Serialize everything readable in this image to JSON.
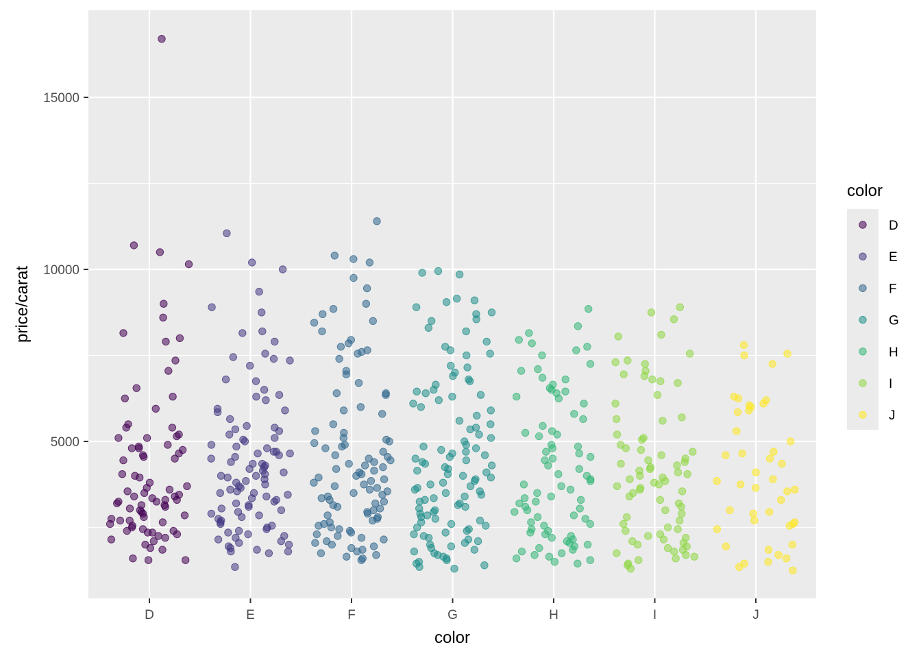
{
  "chart_data": {
    "type": "scatter",
    "subtype": "jitter",
    "title": "",
    "xlabel": "color",
    "ylabel": "price/carat",
    "categories": [
      "D",
      "E",
      "F",
      "G",
      "H",
      "I",
      "J"
    ],
    "y_ticks": [
      5000,
      10000,
      15000
    ],
    "y_tick_labels": [
      "5000",
      "10000",
      "15000"
    ],
    "ylim": [
      700,
      17300
    ],
    "grid": true,
    "legend": {
      "title": "color",
      "position": "right",
      "entries": [
        "D",
        "E",
        "F",
        "G",
        "H",
        "I",
        "J"
      ]
    },
    "colors": {
      "D": "#440154",
      "E": "#443A83",
      "F": "#31688E",
      "G": "#21908C",
      "H": "#35B779",
      "I": "#8FD744",
      "J": "#FDE725"
    },
    "series": [
      {
        "name": "D",
        "values": [
          16700,
          10700,
          10500,
          10150,
          9000,
          8600,
          8150,
          8000,
          7900,
          7350,
          7050,
          6550,
          6300,
          6250,
          5950,
          5500,
          5400,
          5400,
          5200,
          5150,
          5100,
          5100,
          4900,
          4850,
          4800,
          4800,
          4750,
          4650,
          4600,
          4550,
          4500,
          4450,
          4050,
          4000,
          3950,
          3800,
          3700,
          3650,
          3600,
          3550,
          3500,
          3450,
          3400,
          3400,
          3350,
          3300,
          3300,
          3250,
          3250,
          3200,
          3150,
          3150,
          3100,
          3050,
          3000,
          2950,
          2900,
          2850,
          2800,
          2750,
          2700,
          2700,
          2650,
          2600,
          2550,
          2500,
          2450,
          2400,
          2400,
          2350,
          2350,
          2300,
          2250,
          2200,
          2150,
          2100,
          2000,
          1900,
          1850,
          1600,
          1550,
          1550
        ]
      },
      {
        "name": "E",
        "values": [
          11050,
          10200,
          10000,
          9350,
          8900,
          8750,
          8200,
          8150,
          7900,
          7550,
          7450,
          7400,
          7350,
          7200,
          6800,
          6750,
          6500,
          6350,
          6300,
          6200,
          5950,
          5900,
          5850,
          5650,
          5450,
          5400,
          5350,
          5300,
          5200,
          5100,
          5050,
          5000,
          4900,
          4850,
          4800,
          4700,
          4700,
          4650,
          4650,
          4600,
          4550,
          4500,
          4400,
          4350,
          4350,
          4300,
          4250,
          4200,
          4150,
          4100,
          4050,
          4000,
          4000,
          3950,
          3900,
          3850,
          3800,
          3750,
          3700,
          3650,
          3600,
          3550,
          3500,
          3500,
          3450,
          3400,
          3350,
          3300,
          3250,
          3200,
          3150,
          3100,
          3050,
          3000,
          2950,
          2900,
          2850,
          2800,
          2750,
          2700,
          2650,
          2600,
          2550,
          2500,
          2450,
          2400,
          2350,
          2300,
          2250,
          2200,
          2150,
          2100,
          2050,
          2000,
          1950,
          1900,
          1850,
          1800,
          1800,
          1750,
          1350
        ]
      },
      {
        "name": "F",
        "values": [
          11400,
          10400,
          10300,
          10200,
          9750,
          9450,
          9000,
          8850,
          8700,
          8500,
          8450,
          8200,
          7950,
          7850,
          7750,
          7650,
          7600,
          7550,
          7400,
          7050,
          6950,
          6700,
          6400,
          6400,
          6350,
          6000,
          5900,
          5800,
          5500,
          5300,
          5250,
          5100,
          5050,
          5000,
          4950,
          4900,
          4850,
          4800,
          4700,
          4600,
          4550,
          4500,
          4450,
          4400,
          4350,
          4300,
          4250,
          4200,
          4150,
          4100,
          4050,
          4000,
          3950,
          3900,
          3850,
          3800,
          3750,
          3700,
          3650,
          3600,
          3550,
          3500,
          3450,
          3400,
          3350,
          3300,
          3250,
          3200,
          3150,
          3100,
          3050,
          3000,
          2950,
          2900,
          2850,
          2800,
          2750,
          2700,
          2650,
          2600,
          2550,
          2500,
          2450,
          2400,
          2350,
          2300,
          2250,
          2200,
          2150,
          2100,
          2050,
          2000,
          1950,
          1900,
          1850,
          1800,
          1750,
          1700,
          1650,
          1600,
          1550
        ]
      },
      {
        "name": "G",
        "values": [
          9950,
          9900,
          9850,
          9150,
          9100,
          9050,
          8900,
          8750,
          8700,
          8550,
          8500,
          8300,
          8200,
          7900,
          7750,
          7650,
          7550,
          7500,
          7200,
          7150,
          7000,
          6900,
          6800,
          6750,
          6650,
          6500,
          6450,
          6400,
          6350,
          6300,
          6200,
          6100,
          6000,
          5900,
          5750,
          5600,
          5500,
          5400,
          5350,
          5200,
          5100,
          5000,
          4900,
          4850,
          4800,
          4750,
          4700,
          4650,
          4600,
          4550,
          4500,
          4450,
          4400,
          4350,
          4300,
          4250,
          4200,
          4150,
          4100,
          4050,
          4000,
          3950,
          3900,
          3850,
          3800,
          3750,
          3700,
          3650,
          3600,
          3550,
          3500,
          3450,
          3400,
          3350,
          3300,
          3250,
          3200,
          3150,
          3100,
          3050,
          3000,
          2950,
          2900,
          2850,
          2800,
          2750,
          2700,
          2650,
          2600,
          2550,
          2500,
          2450,
          2400,
          2350,
          2300,
          2250,
          2200,
          2150,
          2100,
          2050,
          2000,
          1950,
          1900,
          1850,
          1800,
          1750,
          1700,
          1650,
          1600,
          1550,
          1500,
          1450,
          1400,
          1350,
          1300
        ]
      },
      {
        "name": "H",
        "values": [
          8850,
          8350,
          8150,
          7950,
          7850,
          7750,
          7650,
          7500,
          7250,
          7100,
          7050,
          6850,
          6800,
          6650,
          6550,
          6500,
          6450,
          6400,
          6300,
          6250,
          6100,
          5800,
          5650,
          5450,
          5300,
          5250,
          5200,
          5150,
          4900,
          4850,
          4800,
          4700,
          4650,
          4550,
          4500,
          4450,
          4300,
          4200,
          4050,
          4000,
          3900,
          3850,
          3750,
          3700,
          3600,
          3500,
          3400,
          3350,
          3300,
          3250,
          3200,
          3100,
          3050,
          3000,
          2950,
          2850,
          2800,
          2750,
          2650,
          2600,
          2550,
          2450,
          2400,
          2350,
          2300,
          2250,
          2200,
          2150,
          2100,
          2050,
          2000,
          1950,
          1900,
          1850,
          1800,
          1750,
          1700,
          1650,
          1600,
          1550,
          1500,
          1450
        ]
      },
      {
        "name": "I",
        "values": [
          8900,
          8750,
          8550,
          8100,
          8050,
          7550,
          7350,
          7300,
          7250,
          7050,
          6950,
          6900,
          6800,
          6750,
          6700,
          6350,
          6100,
          5700,
          5650,
          5600,
          5200,
          5100,
          5050,
          4900,
          4800,
          4750,
          4700,
          4600,
          4500,
          4450,
          4400,
          4350,
          4300,
          4250,
          4200,
          4150,
          4100,
          4050,
          4000,
          3950,
          3900,
          3850,
          3800,
          3750,
          3700,
          3650,
          3600,
          3550,
          3500,
          3400,
          3300,
          3200,
          3100,
          3000,
          2900,
          2800,
          2700,
          2600,
          2500,
          2450,
          2400,
          2300,
          2250,
          2200,
          2150,
          2100,
          2050,
          2000,
          1950,
          1900,
          1850,
          1800,
          1750,
          1700,
          1650,
          1600,
          1550,
          1450,
          1400,
          1300
        ]
      },
      {
        "name": "J",
        "values": [
          7800,
          7550,
          7500,
          7250,
          6300,
          6250,
          6200,
          6100,
          6050,
          6000,
          5900,
          5850,
          5300,
          5000,
          4700,
          4650,
          4600,
          4500,
          4350,
          4100,
          3900,
          3850,
          3750,
          3650,
          3600,
          3550,
          3300,
          3000,
          2950,
          2900,
          2700,
          2650,
          2600,
          2550,
          2450,
          2000,
          1950,
          1850,
          1700,
          1600,
          1500,
          1450,
          1350,
          1250
        ]
      }
    ]
  }
}
